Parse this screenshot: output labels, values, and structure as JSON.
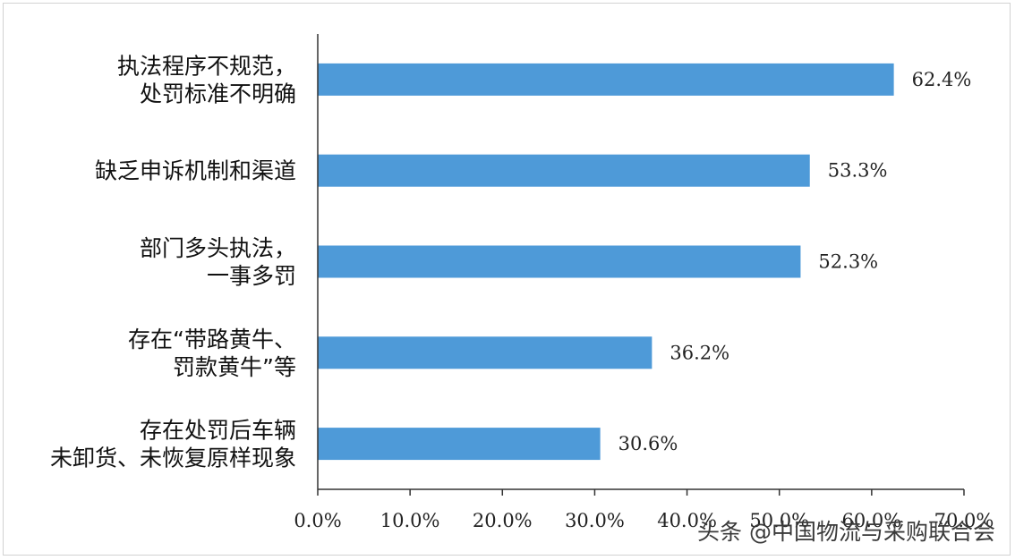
{
  "chart_data": {
    "type": "bar",
    "orientation": "horizontal",
    "categories": [
      [
        "执法程序不规范，",
        "处罚标准不明确"
      ],
      [
        "缺乏申诉机制和渠道"
      ],
      [
        "部门多头执法，",
        "一事多罚"
      ],
      [
        "存在“带路黄牛、",
        "罚款黄牛”等"
      ],
      [
        "存在处罚后车辆",
        "未卸货、未恢复原样现象"
      ]
    ],
    "values": [
      62.4,
      53.3,
      52.3,
      36.2,
      30.6
    ],
    "value_labels": [
      "62.4%",
      "53.3%",
      "52.3%",
      "36.2%",
      "30.6%"
    ],
    "xlim": [
      0,
      70
    ],
    "x_ticks": [
      "0.0%",
      "10.0%",
      "20.0%",
      "30.0%",
      "40.0%",
      "50.0%",
      "60.0%",
      "70.0%"
    ],
    "grid": false,
    "bar_color": "#4e9ad8"
  },
  "watermark": "头条 @中国物流与采购联合会"
}
